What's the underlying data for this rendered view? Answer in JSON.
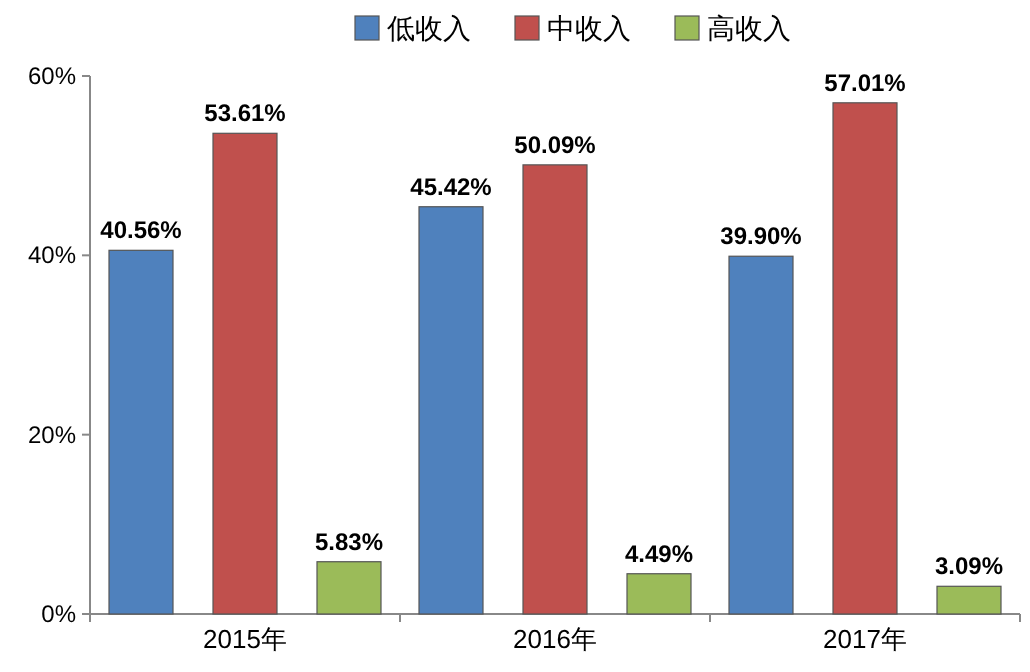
{
  "chart_data": {
    "type": "bar",
    "categories": [
      "2015年",
      "2016年",
      "2017年"
    ],
    "series": [
      {
        "name": "低收入",
        "color": "#4f81bd",
        "values": [
          40.56,
          45.42,
          39.9
        ],
        "value_labels": [
          "40.56%",
          "45.42%",
          "39.90%"
        ]
      },
      {
        "name": "中收入",
        "color": "#c0504d",
        "values": [
          53.61,
          50.09,
          57.01
        ],
        "value_labels": [
          "53.61%",
          "50.09%",
          "57.01%"
        ]
      },
      {
        "name": "高收入",
        "color": "#9bbb59",
        "values": [
          5.83,
          4.49,
          3.09
        ],
        "value_labels": [
          "5.83%",
          "4.49%",
          "3.09%"
        ]
      }
    ],
    "ylim": [
      0,
      60
    ],
    "yticks": [
      {
        "value": 0,
        "label": "0%"
      },
      {
        "value": 20,
        "label": "20%"
      },
      {
        "value": 40,
        "label": "40%"
      },
      {
        "value": 60,
        "label": "60%"
      }
    ],
    "grid": false,
    "legend": "top"
  }
}
